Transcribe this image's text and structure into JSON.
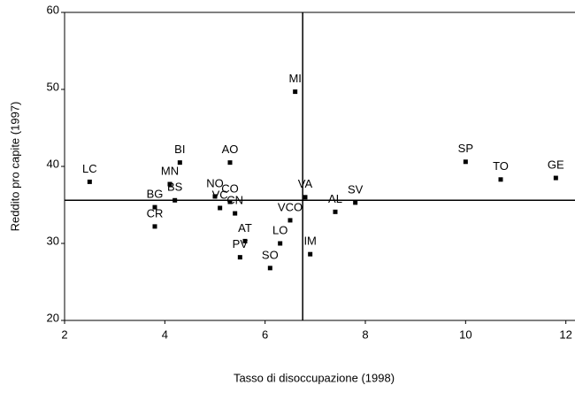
{
  "chart_data": {
    "type": "scatter",
    "x_label": "Tasso di disoccupazione (1998)",
    "y_label": "Reddito pro capite (1997)",
    "labels": [
      "LC",
      "BI",
      "MN",
      "BS",
      "BG",
      "CR",
      "NO",
      "AO",
      "VC",
      "CO",
      "CN",
      "AT",
      "PV",
      "SO",
      "LO",
      "MI",
      "VCO",
      "VA",
      "IM",
      "AL",
      "SV",
      "SP",
      "TO",
      "GE"
    ],
    "x": [
      2.5,
      4.3,
      4.1,
      4.2,
      3.8,
      3.8,
      5.0,
      5.3,
      5.1,
      5.3,
      5.4,
      5.6,
      5.5,
      6.1,
      6.3,
      6.6,
      6.5,
      6.8,
      6.9,
      7.4,
      7.8,
      10.0,
      10.7,
      11.8
    ],
    "y": [
      38.0,
      40.5,
      37.7,
      35.6,
      34.7,
      32.2,
      36.1,
      40.5,
      34.6,
      35.4,
      33.9,
      30.3,
      28.2,
      26.8,
      30.0,
      49.7,
      33.0,
      36.0,
      28.6,
      34.1,
      35.3,
      40.6,
      38.3,
      38.5
    ],
    "color": "#000000",
    "xlim": [
      2,
      12.2
    ],
    "ylim": [
      20,
      60
    ],
    "xticks": [
      2,
      4,
      6,
      8,
      10,
      12
    ],
    "yticks": [
      20,
      30,
      40,
      50,
      60
    ],
    "vline": 6.75,
    "hline": 35.6
  }
}
